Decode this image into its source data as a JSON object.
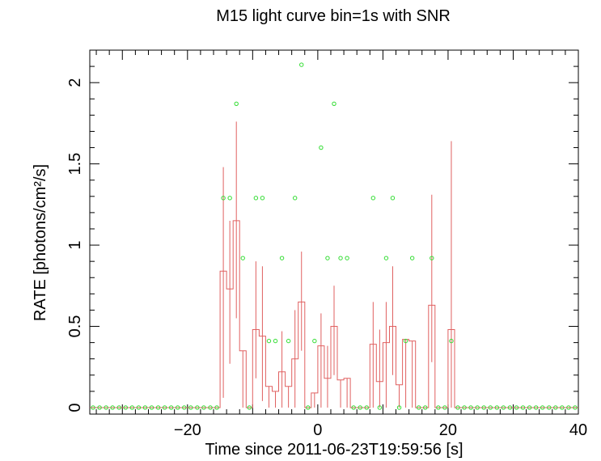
{
  "chart_data": {
    "type": "line",
    "title": "M15 light curve bin=1s with SNR",
    "xlabel": "Time since 2011-06-23T19:59:56 [s]",
    "ylabel": "RATE [photons/cm²/s]",
    "xlim": [
      -35,
      40
    ],
    "ylim": [
      -0.04,
      2.2
    ],
    "x_ticks": [
      -20,
      0,
      20,
      40
    ],
    "x_tick_labels": [
      "−20",
      "0",
      "20",
      "40"
    ],
    "y_ticks": [
      0,
      0.5,
      1,
      1.5,
      2
    ],
    "y_tick_labels": [
      "0",
      "0.5",
      "1",
      "1.5",
      "2"
    ],
    "grid": false,
    "colors": {
      "rate": "#e06060",
      "snr": "#33dd33",
      "frame": "#000000"
    },
    "series": [
      {
        "kind": "step-with-errorbars",
        "x": [
          -35,
          -34,
          -33,
          -32,
          -31,
          -30,
          -29,
          -28,
          -27,
          -26,
          -25,
          -24,
          -23,
          -22,
          -21,
          -20,
          -19,
          -18,
          -17,
          -16,
          -15,
          -14,
          -13,
          -12,
          -11,
          -10,
          -9,
          -8,
          -7,
          -6,
          -5,
          -4,
          -3,
          -2,
          -1,
          0,
          1,
          2,
          3,
          4,
          5,
          6,
          7,
          8,
          9,
          10,
          11,
          12,
          13,
          14,
          15,
          16,
          17,
          18,
          19,
          20,
          21,
          22,
          23,
          24,
          25,
          26,
          27,
          28,
          29,
          30,
          31,
          32,
          33,
          34,
          35,
          36,
          37,
          38,
          39
        ],
        "values": [
          0,
          0,
          0,
          0,
          0,
          0,
          0,
          0,
          0,
          0,
          0,
          0,
          0,
          0,
          0,
          0,
          0,
          0,
          0,
          0,
          0.84,
          0.73,
          1.15,
          0.35,
          0,
          0.48,
          0.44,
          0.13,
          0.1,
          0.22,
          0.13,
          0.3,
          0.65,
          0,
          0.09,
          0.38,
          0.18,
          0.5,
          0.17,
          0.18,
          0,
          0,
          0,
          0.39,
          0.16,
          0.4,
          0.5,
          0.14,
          0.42,
          0.41,
          0,
          0,
          0.63,
          0,
          0,
          0.48,
          0,
          0,
          0,
          0,
          0,
          0,
          0,
          0,
          0,
          0,
          0,
          0,
          0,
          0,
          0,
          0,
          0,
          0,
          0
        ],
        "err_low": [
          0,
          0,
          0,
          0,
          0,
          0,
          0,
          0,
          0,
          0,
          0,
          0,
          0,
          0,
          0,
          0,
          0,
          0,
          0,
          0,
          0.78,
          0.46,
          0.6,
          0.35,
          0,
          0.3,
          0.4,
          0.13,
          0.1,
          0.22,
          0.13,
          0.3,
          0.3,
          0,
          0.09,
          0.38,
          0.18,
          0.3,
          0.17,
          0.18,
          0,
          0,
          0,
          0.39,
          0.16,
          0.4,
          0.3,
          0.14,
          0.42,
          0.41,
          0,
          0,
          0.35,
          0,
          0,
          0.48,
          0,
          0,
          0,
          0,
          0,
          0,
          0,
          0,
          0,
          0,
          0,
          0,
          0,
          0,
          0,
          0,
          0,
          0,
          0
        ],
        "err_high": [
          0,
          0,
          0,
          0,
          0,
          0,
          0,
          0,
          0,
          0,
          0,
          0,
          0,
          0,
          0,
          0,
          0,
          0,
          0,
          0,
          0.64,
          0.42,
          0.61,
          0,
          0,
          0.42,
          0.43,
          0,
          0,
          0.25,
          0,
          0.3,
          0.31,
          0,
          0,
          0.2,
          0.2,
          0.25,
          0,
          0,
          0,
          0,
          0,
          0.26,
          0.32,
          0.25,
          0.37,
          0,
          0,
          0,
          0,
          0,
          0.68,
          0,
          0,
          1.16,
          0,
          0,
          0,
          0,
          0,
          0,
          0,
          0,
          0,
          0,
          0,
          0,
          0,
          0,
          0,
          0,
          0,
          0,
          0
        ]
      },
      {
        "kind": "scatter-open-circles",
        "x": [
          -35,
          -34,
          -33,
          -32,
          -31,
          -30,
          -29,
          -28,
          -27,
          -26,
          -25,
          -24,
          -23,
          -22,
          -21,
          -20,
          -19,
          -18,
          -17,
          -16,
          -15,
          -14,
          -13,
          -12,
          -11,
          -10,
          -9,
          -8,
          -7,
          -6,
          -5,
          -4,
          -3,
          -2,
          -1,
          0,
          1,
          2,
          3,
          4,
          5,
          6,
          7,
          8,
          9,
          10,
          11,
          12,
          13,
          14,
          15,
          16,
          17,
          18,
          19,
          20,
          21,
          22,
          23,
          24,
          25,
          26,
          27,
          28,
          29,
          30,
          31,
          32,
          33,
          34,
          35,
          36,
          37,
          38,
          39
        ],
        "values": [
          0,
          0,
          0,
          0,
          0,
          0,
          0,
          0,
          0,
          0,
          0,
          0,
          0,
          0,
          0,
          0,
          0,
          0,
          0,
          0,
          1.29,
          1.29,
          1.87,
          0.92,
          0,
          1.29,
          1.29,
          0.41,
          0.41,
          0.92,
          0.41,
          1.29,
          2.11,
          0,
          0.41,
          1.6,
          0.92,
          1.87,
          0.92,
          0.92,
          0,
          0,
          0,
          1.29,
          0,
          0.92,
          1.29,
          0,
          0.41,
          0.92,
          0,
          0,
          0.92,
          0,
          0,
          0.41,
          0,
          0,
          0,
          0,
          0,
          0,
          0,
          0,
          0,
          0,
          0,
          0,
          0,
          0,
          0,
          0,
          0,
          0,
          0
        ]
      }
    ]
  }
}
